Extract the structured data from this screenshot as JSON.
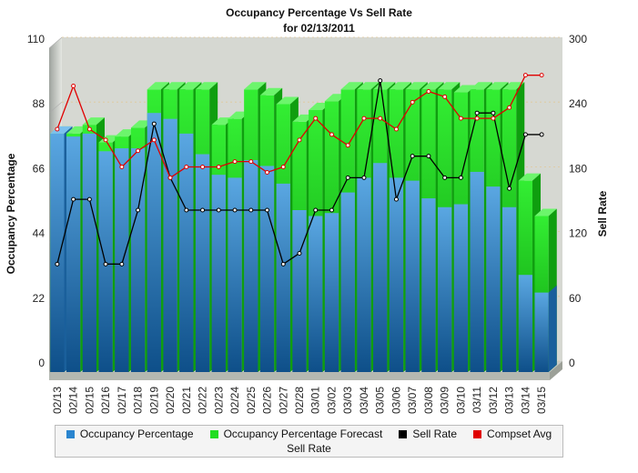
{
  "chart_data": {
    "type": "bar",
    "title": "Occupancy Percentage Vs Sell Rate",
    "subtitle": "for 02/13/2011",
    "ylabel": "Occupancy Percentage",
    "y2label": "Sell Rate",
    "ylim": [
      0,
      110
    ],
    "y2lim": [
      0,
      300
    ],
    "yticks": [
      "0",
      "22",
      "44",
      "66",
      "88",
      "110"
    ],
    "y2ticks": [
      "0",
      "60",
      "120",
      "180",
      "240",
      "300"
    ],
    "categories": [
      "02/13",
      "02/14",
      "02/15",
      "02/16",
      "02/17",
      "02/18",
      "02/19",
      "02/20",
      "02/21",
      "02/22",
      "02/23",
      "02/24",
      "02/25",
      "02/26",
      "02/27",
      "02/28",
      "03/01",
      "03/02",
      "03/03",
      "03/04",
      "03/05",
      "03/06",
      "03/07",
      "03/08",
      "03/09",
      "03/10",
      "03/11",
      "03/12",
      "03/13",
      "03/14",
      "03/15"
    ],
    "series": [
      {
        "name": "Occupancy Percentage",
        "color": "#3a8fd0",
        "axis": "left",
        "values": [
          81,
          80,
          81,
          75,
          76,
          76,
          88,
          86,
          81,
          74,
          67,
          66,
          72,
          70,
          64,
          55,
          53,
          54,
          61,
          66,
          71,
          66,
          65,
          59,
          56,
          57,
          68,
          63,
          56,
          33,
          27
        ]
      },
      {
        "name": "Occupancy Percentage Forecast",
        "color": "#22cc22",
        "axis": "left",
        "values": [
          81,
          81,
          84,
          78,
          80,
          83,
          96,
          96,
          96,
          96,
          84,
          86,
          96,
          94,
          91,
          85,
          89,
          92,
          96,
          96,
          96,
          96,
          96,
          96,
          96,
          95,
          96,
          96,
          96,
          65,
          53
        ]
      },
      {
        "name": "Sell Rate",
        "color": "#000000",
        "axis": "right",
        "values": [
          100,
          160,
          160,
          100,
          100,
          150,
          230,
          180,
          150,
          150,
          150,
          150,
          150,
          150,
          100,
          110,
          150,
          150,
          180,
          180,
          270,
          160,
          200,
          200,
          180,
          180,
          240,
          240,
          170,
          220,
          220
        ]
      },
      {
        "name": "Compset Avg",
        "color": "#e00000",
        "axis": "right",
        "values": [
          225,
          265,
          225,
          215,
          190,
          205,
          215,
          180,
          190,
          190,
          190,
          195,
          195,
          185,
          190,
          215,
          235,
          220,
          210,
          235,
          235,
          225,
          250,
          260,
          255,
          235,
          235,
          235,
          245,
          275,
          275
        ]
      }
    ],
    "legend_caption": "Sell Rate",
    "legend_position": "bottom",
    "grid": true
  }
}
